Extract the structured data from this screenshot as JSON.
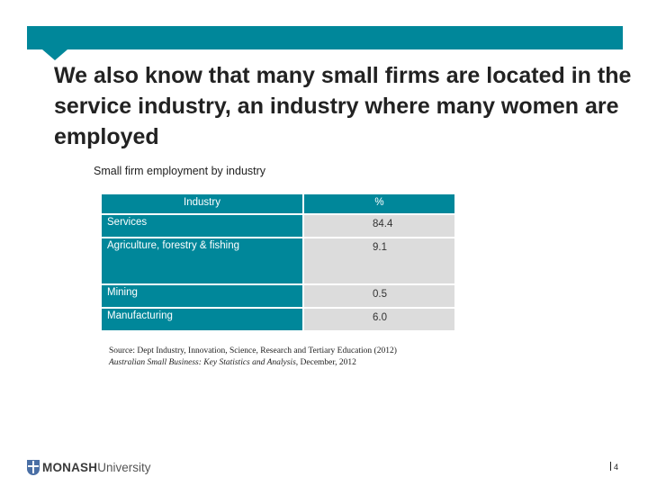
{
  "slide": {
    "headline": "We also know that many small firms are located in the service industry, an industry where many women are employed"
  },
  "table": {
    "caption": "Small firm employment by industry",
    "headers": [
      "Industry",
      "%"
    ],
    "rows": [
      {
        "industry": "Services",
        "value": "84.4"
      },
      {
        "industry": "Agriculture, forestry & fishing",
        "value": "9.1"
      },
      {
        "industry": "Mining",
        "value": "0.5"
      },
      {
        "industry": "Manufacturing",
        "value": "6.0"
      }
    ]
  },
  "source": {
    "line1": "Source: Dept Industry, Innovation, Science, Research and Tertiary Education (2012)",
    "line2_italic": "Australian Small Business: Key Statistics and Analysis",
    "line2_rest": ", December, 2012"
  },
  "footer": {
    "logo_bold": "MONASH",
    "logo_light": " University",
    "page_number": "4"
  },
  "colors": {
    "accent": "#00879a",
    "cell_bg": "#dcdcdc"
  }
}
